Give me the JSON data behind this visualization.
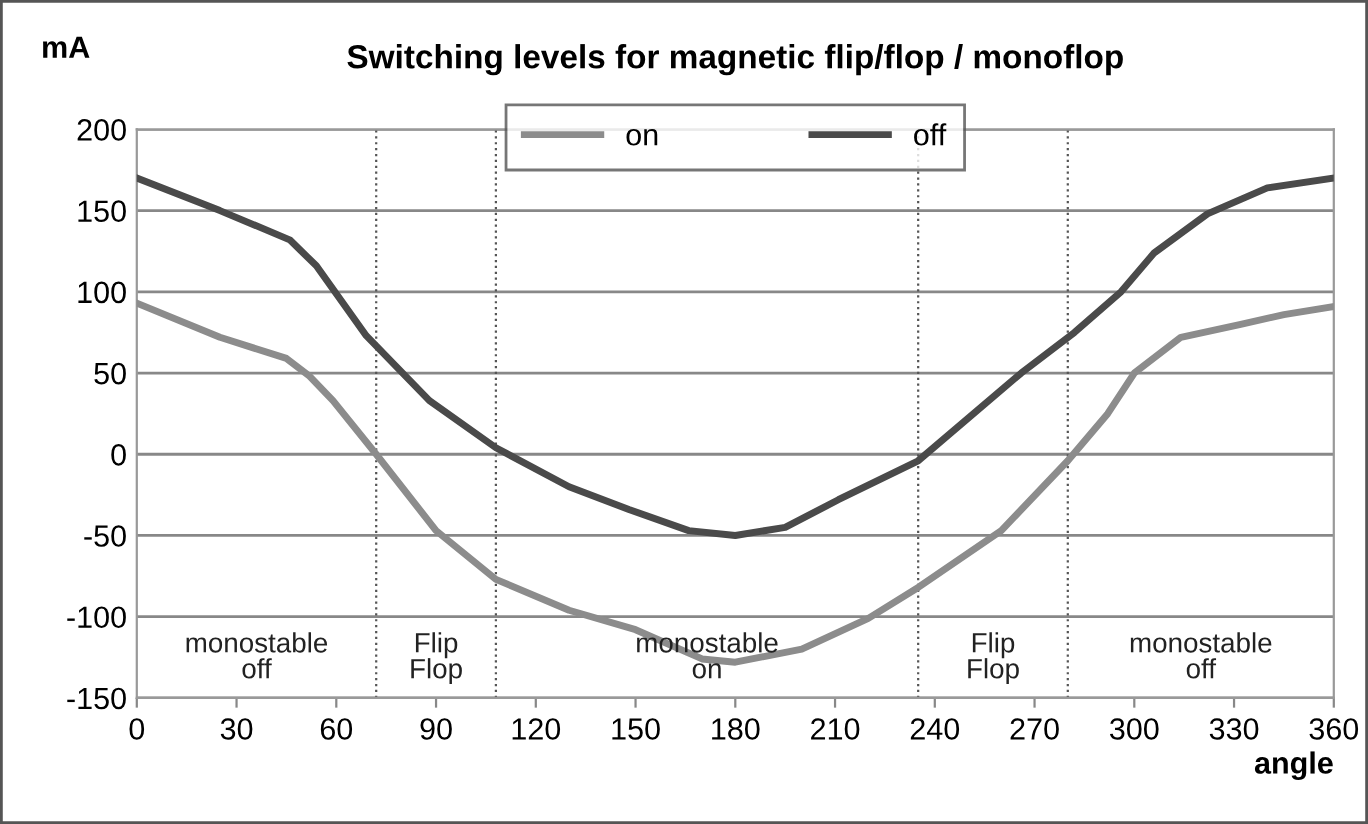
{
  "chart_data": {
    "type": "line",
    "title": "Switching levels for magnetic flip/flop / monoflop",
    "xlabel": "angle",
    "ylabel": "mA",
    "series": [
      {
        "name": "on",
        "color": "#8c8c8c",
        "x": [
          0,
          25,
          45,
          52,
          59,
          72,
          90,
          108,
          130,
          150,
          170,
          180,
          200,
          220,
          235,
          260,
          280,
          292,
          300,
          314,
          332,
          345,
          360
        ],
        "values": [
          93,
          72,
          59,
          48,
          33,
          0,
          -47,
          -77,
          -96,
          -108,
          -126,
          -128,
          -120,
          -101,
          -82,
          -47,
          -4,
          25,
          50,
          72,
          80,
          86,
          91
        ]
      },
      {
        "name": "off",
        "color": "#4a4a4a",
        "x": [
          0,
          25,
          46,
          54,
          69,
          88,
          108,
          130,
          148,
          166,
          180,
          195,
          211,
          235,
          266,
          282,
          296,
          306,
          322,
          340,
          360
        ],
        "values": [
          170,
          150,
          132,
          116,
          73,
          33,
          4,
          -20,
          -34,
          -47,
          -50,
          -45,
          -28,
          -4,
          50,
          75,
          100,
          124,
          148,
          164,
          170
        ]
      }
    ],
    "xlim": [
      0,
      360
    ],
    "xticks": [
      0,
      30,
      60,
      90,
      120,
      150,
      180,
      210,
      240,
      270,
      300,
      330,
      360
    ],
    "ylim": [
      -150,
      200
    ],
    "yticks": [
      -150,
      -100,
      -50,
      0,
      50,
      100,
      150,
      200
    ],
    "grid": "y",
    "legend": "top",
    "marker": "none",
    "line_style": "solid",
    "ref_lines": [
      {
        "axis": "x",
        "value": 72,
        "color": "#555555",
        "line_style": "dotted"
      },
      {
        "axis": "x",
        "value": 108,
        "color": "#555555",
        "line_style": "dotted"
      },
      {
        "axis": "x",
        "value": 235,
        "color": "#555555",
        "line_style": "dotted"
      },
      {
        "axis": "x",
        "value": 280,
        "color": "#555555",
        "line_style": "dotted"
      }
    ],
    "annotations": [
      "monostable\noff",
      "Flip\nFlop",
      "monostable\non",
      "Flip\nFlop",
      "monostable\noff"
    ]
  }
}
